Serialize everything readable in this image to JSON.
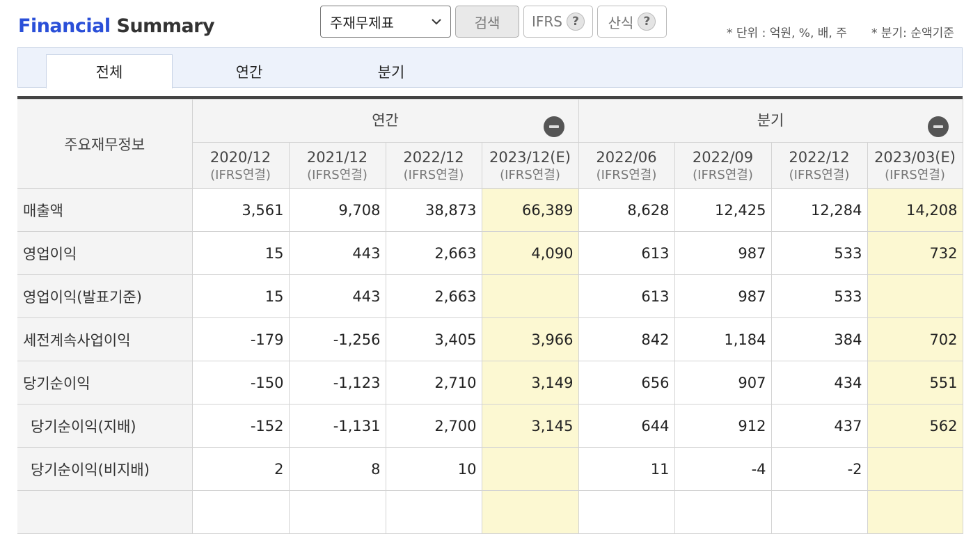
{
  "header": {
    "title_part1": "Financial",
    "title_part2": "Summary",
    "select_value": "주재무제표",
    "search_label": "검색",
    "ifrs_label": "IFRS",
    "formula_label": "산식",
    "help_glyph": "?",
    "unit_note": "* 단위 : 억원, %, 배, 주",
    "quarter_note": "* 분기: 순액기준"
  },
  "tabs": [
    "전체",
    "연간",
    "분기"
  ],
  "table": {
    "row_header": "주요재무정보",
    "groups": [
      "연간",
      "분기"
    ],
    "columns": [
      {
        "period": "2020/12",
        "basis": "(IFRS연결)",
        "estimate": false
      },
      {
        "period": "2021/12",
        "basis": "(IFRS연결)",
        "estimate": false
      },
      {
        "period": "2022/12",
        "basis": "(IFRS연결)",
        "estimate": false
      },
      {
        "period": "2023/12(E)",
        "basis": "(IFRS연결)",
        "estimate": true
      },
      {
        "period": "2022/06",
        "basis": "(IFRS연결)",
        "estimate": false
      },
      {
        "period": "2022/09",
        "basis": "(IFRS연결)",
        "estimate": false
      },
      {
        "period": "2022/12",
        "basis": "(IFRS연결)",
        "estimate": false
      },
      {
        "period": "2023/03(E)",
        "basis": "(IFRS연결)",
        "estimate": true
      }
    ],
    "rows": [
      {
        "label": "매출액",
        "indent": false,
        "values": [
          "3,561",
          "9,708",
          "38,873",
          "66,389",
          "8,628",
          "12,425",
          "12,284",
          "14,208"
        ]
      },
      {
        "label": "영업이익",
        "indent": false,
        "values": [
          "15",
          "443",
          "2,663",
          "4,090",
          "613",
          "987",
          "533",
          "732"
        ]
      },
      {
        "label": "영업이익(발표기준)",
        "indent": false,
        "values": [
          "15",
          "443",
          "2,663",
          "",
          "613",
          "987",
          "533",
          ""
        ]
      },
      {
        "label": "세전계속사업이익",
        "indent": false,
        "values": [
          "-179",
          "-1,256",
          "3,405",
          "3,966",
          "842",
          "1,184",
          "384",
          "702"
        ]
      },
      {
        "label": "당기순이익",
        "indent": false,
        "values": [
          "-150",
          "-1,123",
          "2,710",
          "3,149",
          "656",
          "907",
          "434",
          "551"
        ]
      },
      {
        "label": "당기순이익(지배)",
        "indent": true,
        "values": [
          "-152",
          "-1,131",
          "2,700",
          "3,145",
          "644",
          "912",
          "437",
          "562"
        ]
      },
      {
        "label": "당기순이익(비지배)",
        "indent": true,
        "values": [
          "2",
          "8",
          "10",
          "",
          "11",
          "-4",
          "-2",
          ""
        ]
      }
    ]
  },
  "colors": {
    "accent": "#2a4fd8",
    "negative": "#d60000",
    "estimate_bg": "#fcf8d2"
  }
}
